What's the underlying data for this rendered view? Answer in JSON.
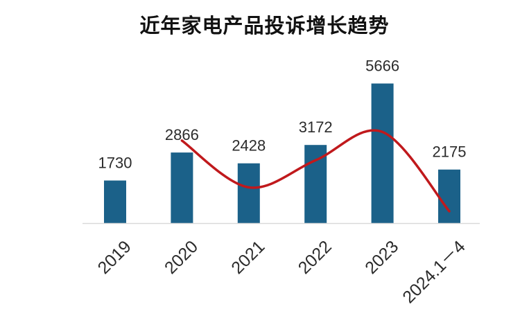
{
  "chart_data": {
    "type": "bar",
    "title": "近年家电产品投诉增长趋势",
    "categories": [
      "2019",
      "2020",
      "2021",
      "2022",
      "2023",
      "2024.1－4"
    ],
    "values": [
      1730,
      2866,
      2428,
      3172,
      5666,
      2175
    ],
    "xlabel": "",
    "ylabel": "",
    "ylim": [
      0,
      6000
    ],
    "grid": false,
    "legend": "none",
    "bar_color": "#1b6189",
    "trend_color": "#c0191c",
    "axis_color": "#d9d9d9",
    "trend_line": {
      "type": "smoothed",
      "start_category": "2020",
      "end_category": "2024.1－4",
      "points": [
        {
          "category": "2020",
          "value": 3350
        },
        {
          "category": "2021",
          "value": 1450
        },
        {
          "category": "2022",
          "value": 2550
        },
        {
          "category": "2023",
          "value": 3700
        },
        {
          "category": "2024.1－4",
          "value": 480
        }
      ]
    }
  }
}
